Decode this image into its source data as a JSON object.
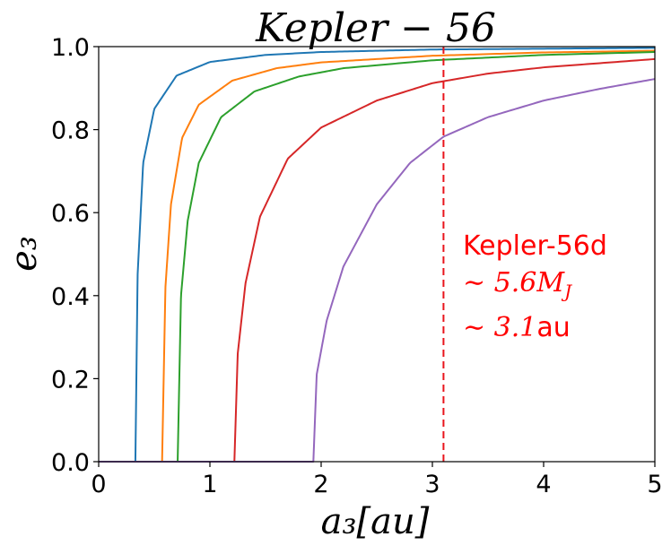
{
  "chart_data": {
    "type": "line",
    "title": "Kepler − 56",
    "xlabel": "a₃[au]",
    "ylabel": "e₃",
    "xlim": [
      0,
      5
    ],
    "ylim": [
      0,
      1
    ],
    "xticks": [
      0,
      1,
      2,
      3,
      4,
      5
    ],
    "xtick_labels": [
      "0",
      "1",
      "2",
      "3",
      "4",
      "5"
    ],
    "yticks": [
      0.0,
      0.2,
      0.4,
      0.6,
      0.8,
      1.0
    ],
    "ytick_labels": [
      "0.0",
      "0.2",
      "0.4",
      "0.6",
      "0.8",
      "1.0"
    ],
    "grid": false,
    "series": [
      {
        "name": "blue",
        "color": "#1f77b4",
        "onset": 0.33,
        "x": [
          0,
          0.33,
          0.35,
          0.4,
          0.5,
          0.7,
          1.0,
          1.5,
          2.0,
          3.0,
          4.0,
          5.0
        ],
        "y": [
          0,
          0,
          0.45,
          0.72,
          0.85,
          0.93,
          0.963,
          0.98,
          0.987,
          0.993,
          0.995,
          0.997
        ]
      },
      {
        "name": "orange",
        "color": "#ff7f0e",
        "onset": 0.57,
        "x": [
          0,
          0.57,
          0.6,
          0.65,
          0.75,
          0.9,
          1.2,
          1.6,
          2.0,
          3.0,
          4.0,
          5.0
        ],
        "y": [
          0,
          0,
          0.42,
          0.62,
          0.78,
          0.86,
          0.918,
          0.948,
          0.962,
          0.978,
          0.986,
          0.99
        ]
      },
      {
        "name": "green",
        "color": "#2ca02c",
        "onset": 0.71,
        "x": [
          0,
          0.71,
          0.74,
          0.8,
          0.9,
          1.1,
          1.4,
          1.8,
          2.2,
          3.0,
          4.0,
          5.0
        ],
        "y": [
          0,
          0,
          0.4,
          0.58,
          0.72,
          0.83,
          0.892,
          0.928,
          0.948,
          0.967,
          0.98,
          0.987
        ]
      },
      {
        "name": "red",
        "color": "#d62728",
        "onset": 1.22,
        "x": [
          0,
          1.22,
          1.25,
          1.32,
          1.45,
          1.7,
          2.0,
          2.5,
          3.0,
          3.5,
          4.0,
          5.0
        ],
        "y": [
          0,
          0,
          0.26,
          0.43,
          0.59,
          0.73,
          0.805,
          0.87,
          0.912,
          0.935,
          0.95,
          0.97
        ]
      },
      {
        "name": "purple",
        "color": "#9467bd",
        "onset": 1.93,
        "x": [
          0,
          1.93,
          1.96,
          2.05,
          2.2,
          2.5,
          2.8,
          3.1,
          3.5,
          4.0,
          4.5,
          5.0
        ],
        "y": [
          0,
          0,
          0.21,
          0.34,
          0.47,
          0.62,
          0.72,
          0.783,
          0.83,
          0.87,
          0.898,
          0.922
        ]
      }
    ],
    "vline": {
      "x": 3.1,
      "color": "#e8141c",
      "style": "dashed"
    },
    "annotation": {
      "color": "#ff0000",
      "name": "Kepler-56d",
      "mass": "∼ 5.6M",
      "mass_sub": "J",
      "distance_prefix": "∼ 3.1",
      "distance_unit": "au"
    }
  }
}
